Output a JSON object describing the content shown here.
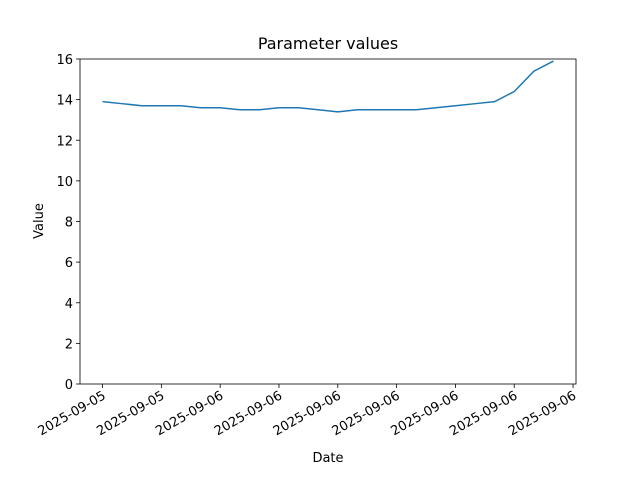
{
  "chart_data": {
    "type": "line",
    "title": "Parameter values",
    "x_label": "Date",
    "y_label": "Value",
    "x": [
      0,
      1,
      2,
      3,
      4,
      5,
      6,
      7,
      8,
      9,
      10,
      11,
      12,
      13,
      14,
      15,
      16,
      17,
      18,
      19,
      20,
      21,
      22,
      23
    ],
    "series": [
      {
        "name": "Value",
        "color": "#1f77b4",
        "values": [
          13.9,
          13.8,
          13.7,
          13.7,
          13.7,
          13.6,
          13.6,
          13.5,
          13.5,
          13.6,
          13.6,
          13.5,
          13.4,
          13.5,
          13.5,
          13.5,
          13.5,
          13.6,
          13.7,
          13.8,
          13.9,
          14.4,
          15.4,
          15.9
        ]
      }
    ],
    "xlim": [
      -1.15,
      24.15
    ],
    "xticks": [
      {
        "value": 0,
        "label": "2025-09-05"
      },
      {
        "value": 3,
        "label": "2025-09-05"
      },
      {
        "value": 6,
        "label": "2025-09-06"
      },
      {
        "value": 9,
        "label": "2025-09-06"
      },
      {
        "value": 12,
        "label": "2025-09-06"
      },
      {
        "value": 15,
        "label": "2025-09-06"
      },
      {
        "value": 18,
        "label": "2025-09-06"
      },
      {
        "value": 21,
        "label": "2025-09-06"
      },
      {
        "value": 24,
        "label": "2025-09-06"
      }
    ],
    "ylim": [
      0,
      16
    ],
    "yticks": [
      0,
      2,
      4,
      6,
      8,
      10,
      12,
      14,
      16
    ]
  }
}
